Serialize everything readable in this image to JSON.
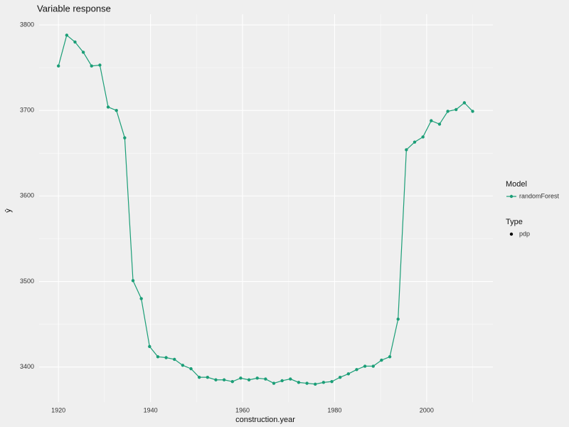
{
  "chart_data": {
    "type": "line",
    "title": "Variable response",
    "x_label": "construction.year",
    "y_label": "ŷ",
    "x": [
      1920,
      1921.8,
      1923.6,
      1925.4,
      1927.2,
      1929,
      1930.8,
      1932.6,
      1934.4,
      1936.2,
      1938,
      1939.8,
      1941.6,
      1943.4,
      1945.2,
      1947,
      1948.8,
      1950.6,
      1952.4,
      1954.2,
      1956,
      1957.8,
      1959.6,
      1961.4,
      1963.2,
      1965,
      1966.8,
      1968.6,
      1970.4,
      1972.2,
      1974,
      1975.8,
      1977.6,
      1979.4,
      1981.2,
      1983,
      1984.8,
      1986.6,
      1988.4,
      1990.2,
      1992,
      1993.8,
      1995.6,
      1997.4,
      1999.2,
      2001,
      2002.8,
      2004.6,
      2006.4,
      2008.2,
      2010
    ],
    "series": [
      {
        "name": "randomForest",
        "color": "#1b9e77",
        "values": [
          3752,
          3788,
          3780,
          3768,
          3752,
          3753,
          3704,
          3700,
          3668,
          3501,
          3480,
          3424,
          3412,
          3411,
          3409,
          3402,
          3398,
          3388,
          3388,
          3385,
          3385,
          3383,
          3387,
          3385,
          3387,
          3386,
          3381,
          3384,
          3386,
          3382,
          3381,
          3380,
          3382,
          3383,
          3388,
          3392,
          3397,
          3401,
          3401,
          3408,
          3412,
          3456,
          3654,
          3663,
          3669,
          3688,
          3684,
          3699,
          3701,
          3709,
          3699
        ]
      }
    ],
    "xlim": [
      1915.8,
      2014.4
    ],
    "ylim": [
      3359,
      3812.5
    ],
    "xticks": [
      1920,
      1940,
      1960,
      1980,
      2000
    ],
    "yticks": [
      3400,
      3500,
      3600,
      3700,
      3800
    ],
    "x_minor_grid": [
      1930,
      1950,
      1970,
      1990,
      2010
    ],
    "y_minor_grid": [
      3450,
      3550,
      3650,
      3750
    ],
    "grid": true,
    "color_legend_title": "Model",
    "shape_legend": {
      "title": "Type",
      "label": "pdp",
      "color": "#000000"
    }
  }
}
